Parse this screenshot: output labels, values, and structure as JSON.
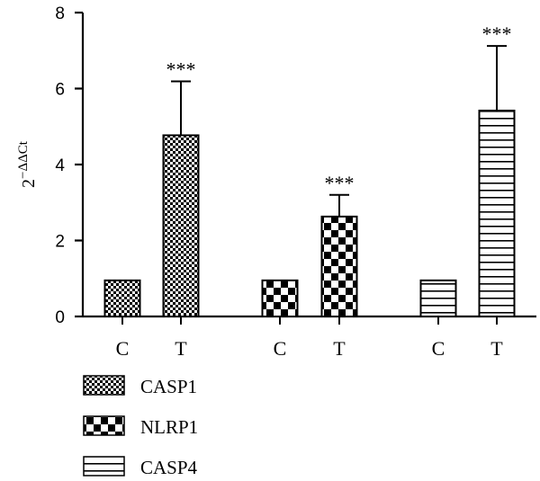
{
  "chart_data": {
    "type": "bar",
    "ylabel": "2",
    "ylabel_sup": "−ΔΔCt",
    "ylim": [
      0,
      8
    ],
    "yticks": [
      "0",
      "2",
      "4",
      "6",
      "8"
    ],
    "groups": [
      {
        "name": "CASP1",
        "pattern": "fine-checker",
        "bars": [
          {
            "label": "C",
            "value": 0.95,
            "error": 0,
            "sig": ""
          },
          {
            "label": "T",
            "value": 4.77,
            "error": 1.42,
            "sig": "***"
          }
        ]
      },
      {
        "name": "NLRP1",
        "pattern": "coarse-checker",
        "bars": [
          {
            "label": "C",
            "value": 0.95,
            "error": 0,
            "sig": ""
          },
          {
            "label": "T",
            "value": 2.63,
            "error": 0.57,
            "sig": "***"
          }
        ]
      },
      {
        "name": "CASP4",
        "pattern": "horizontal-lines",
        "bars": [
          {
            "label": "C",
            "value": 0.95,
            "error": 0,
            "sig": ""
          },
          {
            "label": "T",
            "value": 5.42,
            "error": 1.7,
            "sig": "***"
          }
        ]
      }
    ],
    "legend": [
      "CASP1",
      "NLRP1",
      "CASP4"
    ],
    "legend_position": "bottom-left",
    "grid": false
  }
}
